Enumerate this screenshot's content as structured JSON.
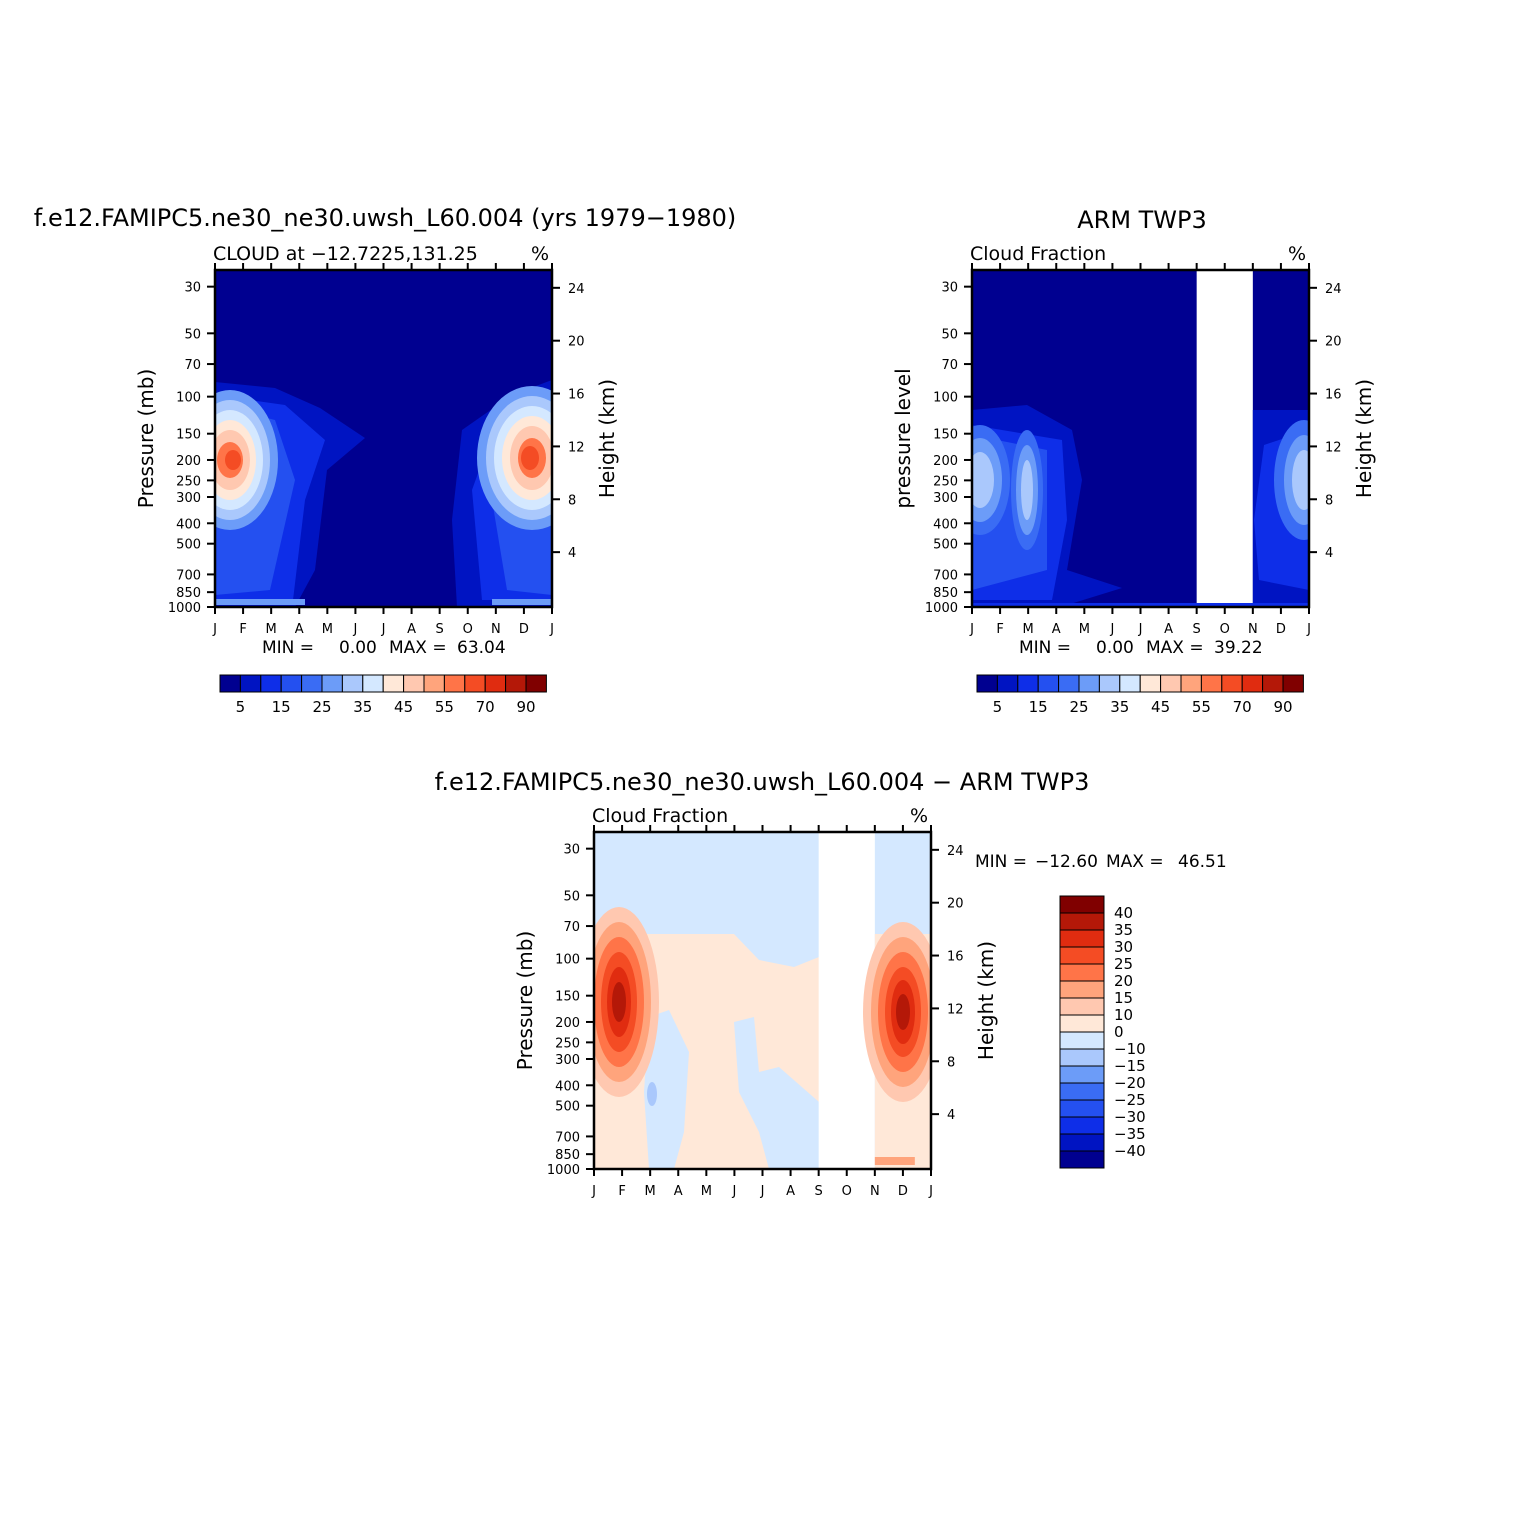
{
  "charts": [
    {
      "title": "f.e12.FAMIPC5.ne30_ne30.uwsh_L60.004 (yrs 1979−1980)",
      "left_label": "CLOUD at −12.7225,131.25",
      "right_label": "%",
      "ylabel": "Pressure (mb)",
      "y2label": "Height (km)",
      "stats": {
        "min_label": "MIN =",
        "min": "0.00",
        "max_label": "MAX =",
        "max": "63.04"
      }
    },
    {
      "title": "ARM TWP3",
      "left_label": "Cloud Fraction",
      "right_label": "%",
      "ylabel": "pressure level",
      "y2label": "Height (km)",
      "stats": {
        "min_label": "MIN =",
        "min": "0.00",
        "max_label": "MAX =",
        "max": "39.22"
      }
    },
    {
      "title": "f.e12.FAMIPC5.ne30_ne30.uwsh_L60.004 − ARM TWP3",
      "left_label": "Cloud Fraction",
      "right_label": "%",
      "ylabel": "Pressure (mb)",
      "y2label": "Height (km)",
      "stats": {
        "min_label": "MIN =",
        "min": "−12.60",
        "max_label": "MAX =",
        "max": "46.51"
      }
    }
  ],
  "chart_data": [
    {
      "type": "heatmap",
      "title": "f.e12.FAMIPC5.ne30_ne30.uwsh_L60.004 (yrs 1979−1980)",
      "subtitle": "CLOUD at −12.7225,131.25",
      "xlabel": "",
      "ylabel": "Pressure (mb)",
      "y2label": "Height (km)",
      "x_ticks": [
        "J",
        "F",
        "M",
        "A",
        "M",
        "J",
        "J",
        "A",
        "S",
        "O",
        "N",
        "D",
        "J"
      ],
      "y_ticks": [
        30,
        50,
        70,
        100,
        150,
        200,
        250,
        300,
        400,
        500,
        700,
        850,
        1000
      ],
      "y2_ticks": [
        24,
        20,
        16,
        12,
        8,
        4
      ],
      "y_scale": "log",
      "ylim": [
        1000,
        25
      ],
      "y2lim": [
        0,
        25.5
      ],
      "colorbar": {
        "labels": [
          5,
          15,
          25,
          35,
          45,
          55,
          70,
          90
        ],
        "colors": [
          "#000090",
          "#0014c2",
          "#0e2ee8",
          "#2450f0",
          "#3a6cf4",
          "#6c9cf8",
          "#aac8fc",
          "#d4e8ff",
          "#ffe8d8",
          "#ffc8b0",
          "#ffa47c",
          "#ff7448",
          "#f44c24",
          "#e02c10",
          "#b41808",
          "#800000"
        ]
      },
      "min": 0.0,
      "max": 63.04,
      "features": [
        {
          "month": 1.0,
          "pressure": 200,
          "value": 63
        },
        {
          "month": 12.0,
          "pressure": 200,
          "value": 63
        }
      ]
    },
    {
      "type": "heatmap",
      "title": "ARM TWP3",
      "subtitle": "Cloud Fraction",
      "xlabel": "",
      "ylabel": "pressure level",
      "y2label": "Height (km)",
      "x_ticks": [
        "J",
        "F",
        "M",
        "A",
        "M",
        "J",
        "J",
        "A",
        "S",
        "O",
        "N",
        "D",
        "J"
      ],
      "y_ticks": [
        30,
        50,
        70,
        100,
        150,
        200,
        250,
        300,
        400,
        500,
        700,
        850,
        1000
      ],
      "y2_ticks": [
        24,
        20,
        16,
        12,
        8,
        4
      ],
      "y_scale": "log",
      "missing_months": [
        "S",
        "O"
      ],
      "colorbar": {
        "labels": [
          5,
          15,
          25,
          35,
          45,
          55,
          70,
          90
        ],
        "colors": [
          "#000090",
          "#0014c2",
          "#0e2ee8",
          "#2450f0",
          "#3a6cf4",
          "#6c9cf8",
          "#aac8fc",
          "#d4e8ff",
          "#ffe8d8",
          "#ffc8b0",
          "#ffa47c",
          "#ff7448",
          "#f44c24",
          "#e02c10",
          "#b41808",
          "#800000"
        ]
      },
      "min": 0.0,
      "max": 39.22
    },
    {
      "type": "heatmap",
      "title": "f.e12.FAMIPC5.ne30_ne30.uwsh_L60.004 − ARM TWP3",
      "subtitle": "Cloud Fraction",
      "xlabel": "",
      "ylabel": "Pressure (mb)",
      "y2label": "Height (km)",
      "x_ticks": [
        "J",
        "F",
        "M",
        "A",
        "M",
        "J",
        "J",
        "A",
        "S",
        "O",
        "N",
        "D",
        "J"
      ],
      "y_ticks": [
        30,
        50,
        70,
        100,
        150,
        200,
        250,
        300,
        400,
        500,
        700,
        850,
        1000
      ],
      "y2_ticks": [
        24,
        20,
        16,
        12,
        8,
        4
      ],
      "y_scale": "log",
      "missing_months": [
        "S",
        "O"
      ],
      "colorbar": {
        "labels": [
          "40",
          "35",
          "30",
          "25",
          "20",
          "15",
          "10",
          "0",
          "−10",
          "−15",
          "−20",
          "−25",
          "−30",
          "−35",
          "−40"
        ],
        "colors": [
          "#800000",
          "#b41808",
          "#e02c10",
          "#f44c24",
          "#ff7448",
          "#ffa47c",
          "#ffc8b0",
          "#ffe8d8",
          "#d4e8ff",
          "#aac8fc",
          "#6c9cf8",
          "#3a6cf4",
          "#2450f0",
          "#0e2ee8",
          "#0014c2",
          "#000090"
        ]
      },
      "min": -12.6,
      "max": 46.51
    }
  ]
}
